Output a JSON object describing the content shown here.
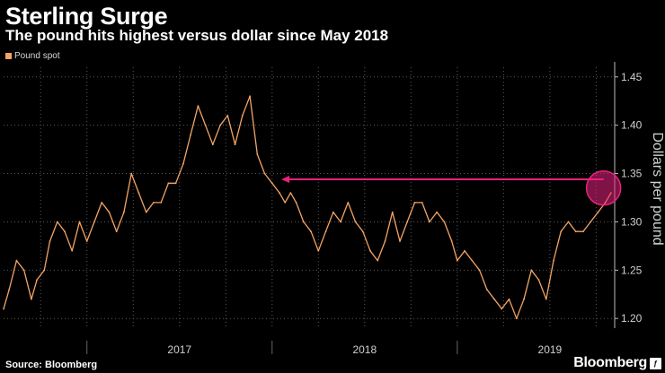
{
  "header": {
    "title": "Sterling Surge",
    "subtitle": "The pound hits highest versus dollar since May 2018"
  },
  "footer": {
    "source": "Source: Bloomberg",
    "brand": "Bloomberg",
    "brand_badge": "ƒ"
  },
  "colors": {
    "background": "#000000",
    "series": "#f4a464",
    "annotation": "#e8237d",
    "grid": "#5a5a5a",
    "text": "#ffffff",
    "axis_text": "#d0d0d0"
  },
  "chart_data": {
    "type": "line",
    "title": "Sterling Surge",
    "subtitle": "The pound hits highest versus dollar since May 2018",
    "xlabel": "",
    "ylabel": "Dollars per pound",
    "legend": {
      "entries": [
        "Pound spot"
      ],
      "placement": "top-left"
    },
    "x_ticks": [
      "2017",
      "2018",
      "2019"
    ],
    "y_ticks": [
      1.2,
      1.25,
      1.3,
      1.35,
      1.4,
      1.45
    ],
    "ylim": [
      1.19,
      1.46
    ],
    "xlim": [
      2016.55,
      2019.85
    ],
    "grid": true,
    "series": [
      {
        "name": "Pound spot",
        "x": [
          2016.55,
          2016.58,
          2016.62,
          2016.66,
          2016.7,
          2016.73,
          2016.77,
          2016.8,
          2016.84,
          2016.88,
          2016.92,
          2016.96,
          2017.0,
          2017.04,
          2017.08,
          2017.12,
          2017.16,
          2017.2,
          2017.24,
          2017.28,
          2017.32,
          2017.36,
          2017.4,
          2017.44,
          2017.48,
          2017.52,
          2017.56,
          2017.6,
          2017.64,
          2017.68,
          2017.72,
          2017.76,
          2017.8,
          2017.84,
          2017.88,
          2017.92,
          2017.96,
          2018.0,
          2018.04,
          2018.07,
          2018.1,
          2018.13,
          2018.17,
          2018.21,
          2018.25,
          2018.29,
          2018.33,
          2018.37,
          2018.41,
          2018.45,
          2018.49,
          2018.53,
          2018.57,
          2018.61,
          2018.65,
          2018.69,
          2018.73,
          2018.77,
          2018.81,
          2018.85,
          2018.89,
          2018.93,
          2018.97,
          2019.0,
          2019.04,
          2019.08,
          2019.12,
          2019.16,
          2019.2,
          2019.24,
          2019.28,
          2019.32,
          2019.36,
          2019.4,
          2019.44,
          2019.48,
          2019.52,
          2019.56,
          2019.6,
          2019.64,
          2019.68,
          2019.72,
          2019.76,
          2019.8,
          2019.83
        ],
        "values": [
          1.21,
          1.23,
          1.26,
          1.25,
          1.22,
          1.24,
          1.25,
          1.28,
          1.3,
          1.29,
          1.27,
          1.3,
          1.28,
          1.3,
          1.32,
          1.31,
          1.29,
          1.31,
          1.35,
          1.33,
          1.31,
          1.32,
          1.32,
          1.34,
          1.34,
          1.36,
          1.39,
          1.42,
          1.4,
          1.38,
          1.4,
          1.41,
          1.38,
          1.41,
          1.43,
          1.37,
          1.35,
          1.34,
          1.33,
          1.32,
          1.33,
          1.32,
          1.3,
          1.29,
          1.27,
          1.29,
          1.31,
          1.3,
          1.32,
          1.3,
          1.29,
          1.27,
          1.26,
          1.28,
          1.31,
          1.28,
          1.3,
          1.32,
          1.32,
          1.3,
          1.31,
          1.3,
          1.28,
          1.26,
          1.27,
          1.26,
          1.25,
          1.23,
          1.22,
          1.21,
          1.22,
          1.2,
          1.22,
          1.25,
          1.24,
          1.22,
          1.26,
          1.29,
          1.3,
          1.29,
          1.29,
          1.3,
          1.31,
          1.32,
          1.33
        ]
      }
    ],
    "annotations": [
      {
        "type": "arrow",
        "from": {
          "x": 2019.8,
          "y": 1.344
        },
        "to": {
          "x": 2018.05,
          "y": 1.344
        }
      },
      {
        "type": "circle",
        "center": {
          "x": 2019.79,
          "y": 1.335
        }
      }
    ]
  }
}
